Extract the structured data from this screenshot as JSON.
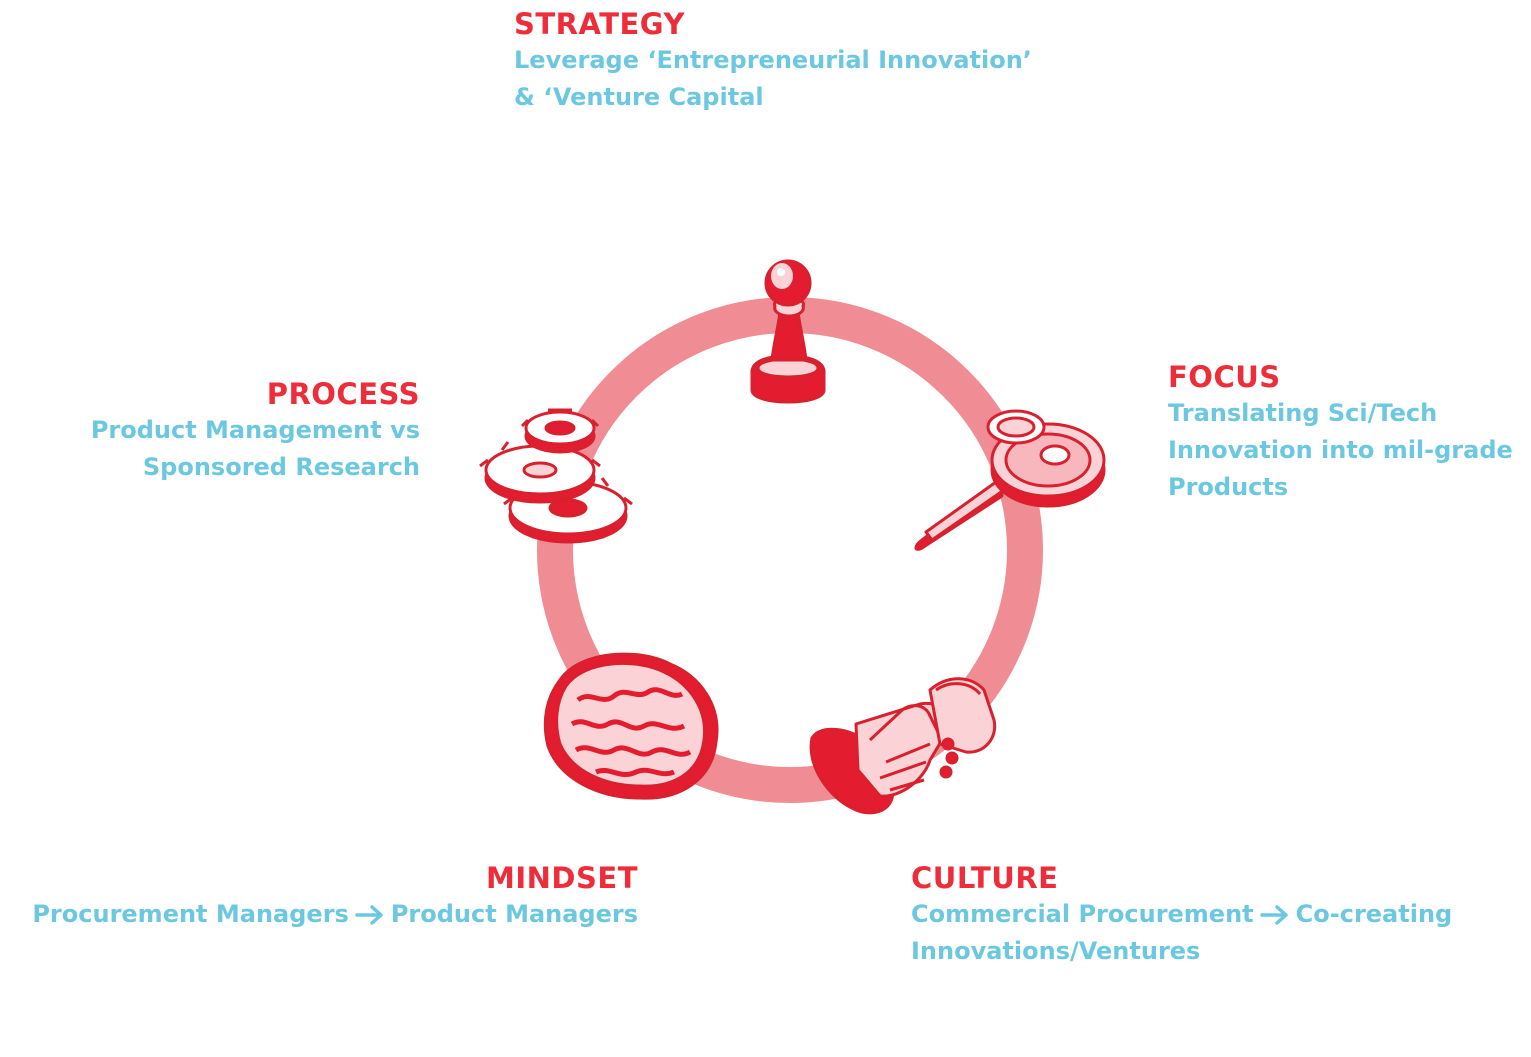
{
  "colors": {
    "accent_red": "#ee2d3b",
    "ring": "#f08c94",
    "description_blue": "#6cc8e0",
    "light_pink": "#fbd3d6"
  },
  "strategy": {
    "title": "STRATEGY",
    "line1": "Leverage ‘Entrepreneurial Innovation’",
    "line2": "& ‘Venture Capital",
    "icon": "chess-pawn-icon"
  },
  "focus": {
    "title": "FOCUS",
    "line1": "Translating Sci/Tech",
    "line2": "Innovation into mil-grade",
    "line3": "Products",
    "icon": "magnifying-glass-icon"
  },
  "culture": {
    "title": "CULTURE",
    "line1_left": "Commercial Procurement",
    "line1_right": "Co-creating",
    "line2": "Innovations/Ventures",
    "icon": "handshake-icon"
  },
  "mindset": {
    "title": "MINDSET",
    "line1_left": "Procurement Managers",
    "line1_right": "Product Managers",
    "icon": "brain-icon"
  },
  "process": {
    "title": "PROCESS",
    "line1": "Product Management vs",
    "line2": "Sponsored Research",
    "icon": "gears-icon"
  }
}
